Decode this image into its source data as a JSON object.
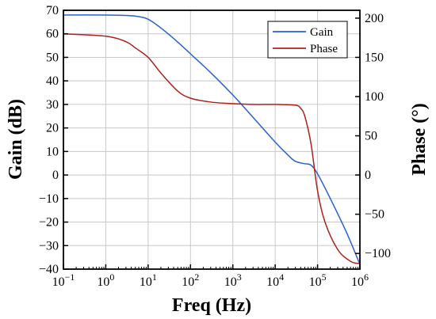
{
  "chart_data": {
    "type": "line",
    "xlabel": "Freq (Hz)",
    "ylabel_left": "Gain (dB)",
    "ylabel_right": "Phase (°)",
    "x_scale": "log",
    "xlim": [
      0.1,
      1000000
    ],
    "ylim_left": [
      -40,
      70
    ],
    "ylim_right": [
      -120,
      210
    ],
    "grid": true,
    "legend_position": "top-right",
    "x_ticks": [
      {
        "base": "10",
        "exp": "−1",
        "value": 0.1
      },
      {
        "base": "10",
        "exp": "0",
        "value": 1
      },
      {
        "base": "10",
        "exp": "1",
        "value": 10
      },
      {
        "base": "10",
        "exp": "2",
        "value": 100
      },
      {
        "base": "10",
        "exp": "3",
        "value": 1000
      },
      {
        "base": "10",
        "exp": "4",
        "value": 10000
      },
      {
        "base": "10",
        "exp": "5",
        "value": 100000
      },
      {
        "base": "10",
        "exp": "6",
        "value": 1000000
      }
    ],
    "y_left_ticks": [
      "70",
      "60",
      "50",
      "40",
      "30",
      "20",
      "10",
      "0",
      "−10",
      "−20",
      "−30",
      "−40"
    ],
    "y_left_tick_values": [
      70,
      60,
      50,
      40,
      30,
      20,
      10,
      0,
      -10,
      -20,
      -30,
      -40
    ],
    "y_right_ticks": [
      "200",
      "150",
      "100",
      "50",
      "0",
      "−50",
      "−100"
    ],
    "y_right_tick_values": [
      200,
      150,
      100,
      50,
      0,
      -50,
      -100
    ],
    "series": [
      {
        "name": "Gain",
        "axis": "left",
        "color": "#2a5fd6",
        "x": [
          0.1,
          1,
          3,
          6,
          10,
          20,
          50,
          100,
          300,
          1000,
          3000,
          10000,
          20000,
          30000,
          50000,
          70000,
          100000,
          200000,
          500000,
          1000000
        ],
        "y": [
          68,
          68,
          67.8,
          67.3,
          66.2,
          62.5,
          56.5,
          51.5,
          43.5,
          34,
          24.5,
          14,
          8.5,
          5.8,
          4.8,
          4.2,
          0.5,
          -10,
          -25,
          -38
        ]
      },
      {
        "name": "Phase",
        "axis": "right",
        "color": "#b0201b",
        "x": [
          0.1,
          1,
          3,
          5,
          10,
          20,
          50,
          100,
          300,
          1000,
          3000,
          10000,
          30000,
          40000,
          50000,
          70000,
          100000,
          150000,
          300000,
          600000,
          1000000
        ],
        "y": [
          180,
          177,
          170,
          162,
          150,
          130,
          107,
          98,
          93,
          91,
          90,
          90,
          89,
          85,
          75,
          40,
          -20,
          -60,
          -95,
          -110,
          -113
        ]
      }
    ]
  }
}
